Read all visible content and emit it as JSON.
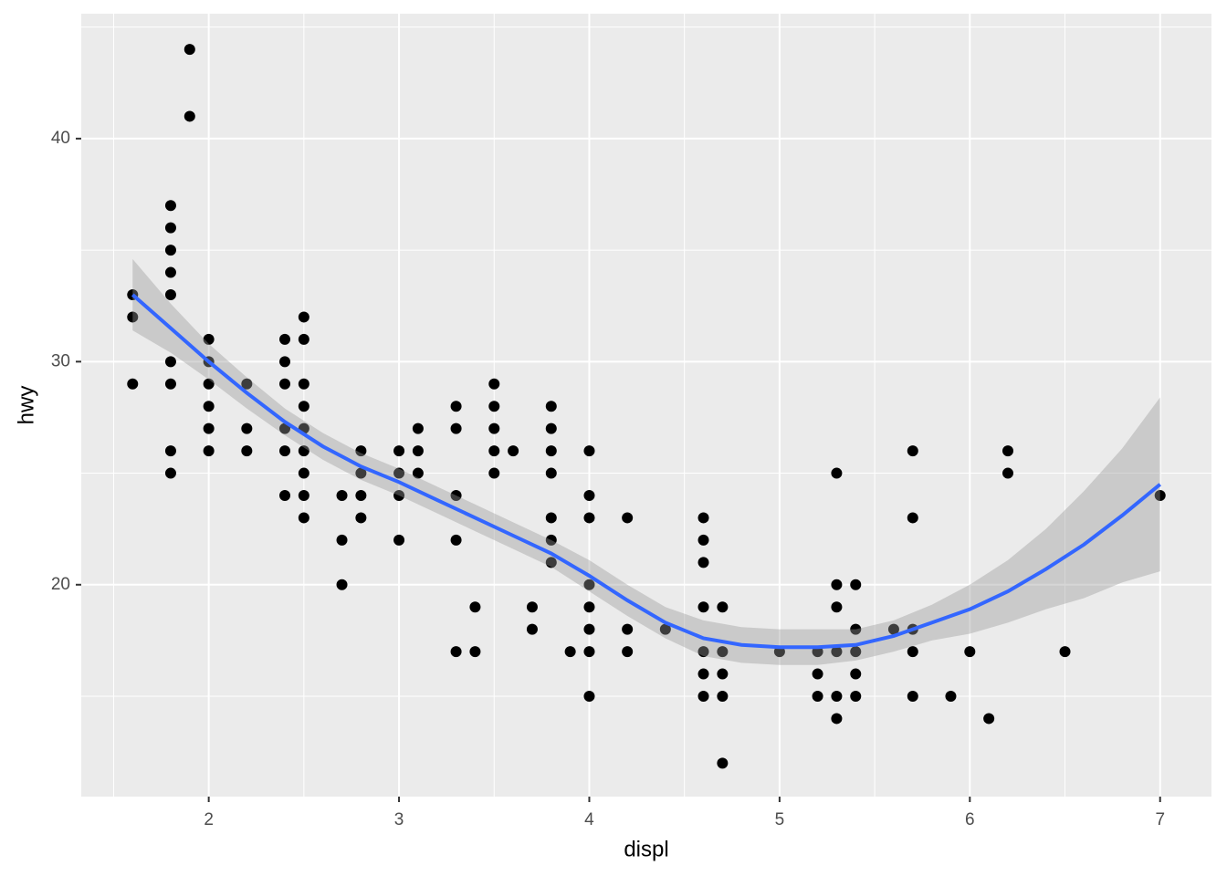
{
  "chart_data": {
    "type": "scatter",
    "x_label": "displ",
    "y_label": "hwy",
    "xlim": [
      1.33,
      7.27
    ],
    "ylim": [
      10.5,
      45.6
    ],
    "xticks": [
      2,
      3,
      4,
      5,
      6,
      7
    ],
    "yticks": [
      20,
      30,
      40
    ],
    "minor_xticks": [
      1.5,
      2.5,
      3.5,
      4.5,
      5.5,
      6.5
    ],
    "minor_yticks": [
      15,
      25,
      35,
      45
    ],
    "grid": true,
    "points": {
      "color": "#000000",
      "x": [
        1.6,
        1.6,
        1.6,
        1.8,
        1.8,
        1.8,
        1.8,
        1.8,
        1.8,
        1.8,
        1.8,
        1.8,
        1.9,
        1.9,
        2.0,
        2.0,
        2.0,
        2.0,
        2.0,
        2.0,
        2.2,
        2.2,
        2.2,
        2.4,
        2.4,
        2.4,
        2.4,
        2.4,
        2.4,
        2.5,
        2.5,
        2.5,
        2.5,
        2.5,
        2.5,
        2.5,
        2.5,
        2.5,
        2.7,
        2.7,
        2.7,
        2.8,
        2.8,
        2.8,
        2.8,
        3.0,
        3.0,
        3.0,
        3.0,
        3.1,
        3.1,
        3.1,
        3.3,
        3.3,
        3.3,
        3.3,
        3.3,
        3.4,
        3.4,
        3.5,
        3.5,
        3.5,
        3.5,
        3.5,
        3.6,
        3.7,
        3.7,
        3.8,
        3.8,
        3.8,
        3.8,
        3.8,
        3.8,
        3.8,
        3.9,
        4.0,
        4.0,
        4.0,
        4.0,
        4.0,
        4.0,
        4.0,
        4.0,
        4.2,
        4.2,
        4.2,
        4.4,
        4.6,
        4.6,
        4.6,
        4.6,
        4.6,
        4.6,
        4.6,
        4.7,
        4.7,
        4.7,
        4.7,
        4.7,
        5.0,
        5.2,
        5.2,
        5.2,
        5.3,
        5.3,
        5.3,
        5.3,
        5.3,
        5.3,
        5.4,
        5.4,
        5.4,
        5.4,
        5.4,
        5.6,
        5.7,
        5.7,
        5.7,
        5.7,
        5.7,
        5.9,
        6.0,
        6.1,
        6.2,
        6.2,
        6.5,
        7.0
      ],
      "y": [
        33,
        32,
        29,
        37,
        36,
        35,
        34,
        33,
        30,
        29,
        26,
        25,
        44,
        41,
        31,
        30,
        29,
        28,
        27,
        26,
        29,
        27,
        26,
        31,
        30,
        29,
        27,
        26,
        24,
        32,
        31,
        29,
        28,
        27,
        26,
        25,
        24,
        23,
        24,
        22,
        20,
        26,
        25,
        24,
        23,
        26,
        25,
        24,
        22,
        27,
        26,
        25,
        28,
        27,
        24,
        22,
        17,
        19,
        17,
        29,
        28,
        27,
        26,
        25,
        26,
        19,
        18,
        28,
        27,
        26,
        25,
        23,
        22,
        21,
        17,
        26,
        24,
        23,
        20,
        19,
        18,
        17,
        15,
        23,
        18,
        17,
        18,
        23,
        22,
        21,
        19,
        17,
        16,
        15,
        19,
        17,
        16,
        15,
        12,
        17,
        17,
        16,
        15,
        25,
        20,
        19,
        17,
        15,
        14,
        20,
        18,
        17,
        16,
        15,
        18,
        26,
        23,
        18,
        17,
        15,
        15,
        17,
        14,
        26,
        25,
        17,
        24
      ]
    },
    "smooth": {
      "color": "#3366FF",
      "ribbon_color": "#999999",
      "x": [
        1.6,
        1.8,
        2.0,
        2.2,
        2.4,
        2.6,
        2.8,
        3.0,
        3.2,
        3.4,
        3.6,
        3.8,
        4.0,
        4.2,
        4.4,
        4.6,
        4.8,
        5.0,
        5.2,
        5.4,
        5.6,
        5.8,
        6.0,
        6.2,
        6.4,
        6.6,
        6.8,
        7.0
      ],
      "y": [
        33.0,
        31.5,
        30.0,
        28.6,
        27.3,
        26.2,
        25.3,
        24.6,
        23.8,
        23.0,
        22.2,
        21.4,
        20.4,
        19.3,
        18.3,
        17.6,
        17.3,
        17.2,
        17.2,
        17.3,
        17.7,
        18.3,
        18.9,
        19.7,
        20.7,
        21.8,
        23.1,
        24.5
      ],
      "lower": [
        31.4,
        30.4,
        29.2,
        27.9,
        26.7,
        25.6,
        24.7,
        24.0,
        23.2,
        22.4,
        21.6,
        20.8,
        19.7,
        18.6,
        17.6,
        16.8,
        16.5,
        16.4,
        16.4,
        16.6,
        17.0,
        17.5,
        17.8,
        18.3,
        18.9,
        19.4,
        20.1,
        20.6
      ],
      "upper": [
        34.6,
        32.6,
        30.8,
        29.3,
        27.9,
        26.8,
        25.9,
        25.2,
        24.4,
        23.6,
        22.8,
        22.0,
        21.1,
        20.0,
        19.0,
        18.4,
        18.1,
        18.0,
        18.0,
        18.0,
        18.4,
        19.1,
        20.0,
        21.1,
        22.5,
        24.2,
        26.1,
        28.4
      ]
    }
  }
}
